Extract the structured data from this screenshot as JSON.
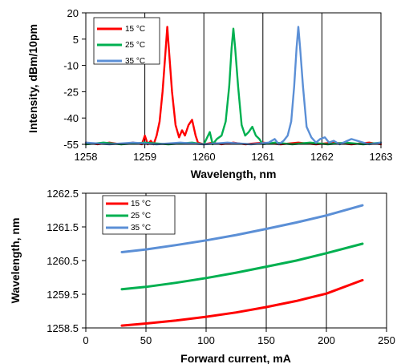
{
  "chart_data": [
    {
      "type": "line",
      "title": "",
      "xlabel": "Wavelength, nm",
      "ylabel": "Intensity, dBm/10pm",
      "xlim": [
        1258,
        1263
      ],
      "ylim": [
        -55,
        20
      ],
      "xticks": [
        "1258",
        "1259",
        "1260",
        "1261",
        "1262",
        "1263"
      ],
      "yticks": [
        "20",
        "5",
        "-10",
        "-25",
        "-40",
        "-55"
      ],
      "grid": "vertical",
      "legend_position": "top-left",
      "series": [
        {
          "name": "15 °C",
          "color": "#ff0000",
          "peak_x": 1259.38,
          "peak_y": 12,
          "x": [
            1258.0,
            1258.2,
            1258.4,
            1258.6,
            1258.8,
            1258.95,
            1259.0,
            1259.05,
            1259.1,
            1259.15,
            1259.2,
            1259.25,
            1259.3,
            1259.35,
            1259.38,
            1259.41,
            1259.46,
            1259.52,
            1259.58,
            1259.63,
            1259.68,
            1259.74,
            1259.8,
            1259.86,
            1259.9,
            1260.0,
            1260.15,
            1260.3,
            1260.5,
            1260.7,
            1261.0,
            1261.3,
            1261.6,
            1261.9,
            1262.2,
            1262.5,
            1262.8,
            1263.0
          ],
          "y": [
            -54,
            -55,
            -54,
            -55,
            -54,
            -55,
            -50,
            -55,
            -53,
            -55,
            -50,
            -42,
            -25,
            -2,
            12,
            -2,
            -25,
            -44,
            -51,
            -47,
            -50,
            -44,
            -41,
            -50,
            -54,
            -55,
            -54,
            -55,
            -54,
            -55,
            -54,
            -55,
            -54,
            -55,
            -54,
            -55,
            -54,
            -55
          ]
        },
        {
          "name": "25 °C",
          "color": "#00b050",
          "peak_x": 1260.5,
          "peak_y": 11,
          "x": [
            1258.0,
            1258.3,
            1258.6,
            1259.0,
            1259.4,
            1259.8,
            1260.0,
            1260.1,
            1260.15,
            1260.22,
            1260.3,
            1260.37,
            1260.43,
            1260.47,
            1260.5,
            1260.53,
            1260.58,
            1260.64,
            1260.7,
            1260.76,
            1260.82,
            1260.88,
            1260.94,
            1261.0,
            1261.2,
            1261.5,
            1261.8,
            1262.1,
            1262.4,
            1262.7,
            1263.0
          ],
          "y": [
            -55,
            -54,
            -55,
            -54,
            -55,
            -54,
            -55,
            -48,
            -55,
            -52,
            -50,
            -42,
            -22,
            0,
            11,
            0,
            -22,
            -44,
            -50,
            -48,
            -45,
            -50,
            -52,
            -55,
            -54,
            -55,
            -54,
            -55,
            -54,
            -55,
            -54
          ]
        },
        {
          "name": "35 °C",
          "color": "#5b8fd6",
          "peak_x": 1261.6,
          "peak_y": 12,
          "x": [
            1258.0,
            1258.4,
            1258.8,
            1259.2,
            1259.6,
            1260.0,
            1260.4,
            1260.8,
            1261.1,
            1261.2,
            1261.27,
            1261.35,
            1261.42,
            1261.48,
            1261.53,
            1261.57,
            1261.6,
            1261.63,
            1261.68,
            1261.74,
            1261.82,
            1261.9,
            1261.97,
            1262.05,
            1262.12,
            1262.2,
            1262.3,
            1262.5,
            1262.8,
            1263.0
          ],
          "y": [
            -54,
            -55,
            -54,
            -55,
            -54,
            -55,
            -54,
            -55,
            -54,
            -52,
            -55,
            -53,
            -50,
            -42,
            -22,
            0,
            12,
            0,
            -22,
            -45,
            -51,
            -54,
            -52,
            -51,
            -54,
            -53,
            -55,
            -52,
            -55,
            -54
          ]
        }
      ]
    },
    {
      "type": "line",
      "title": "",
      "xlabel": "Forward current, mA",
      "ylabel": "Wavelength, nm",
      "xlim": [
        0,
        250
      ],
      "ylim": [
        1258.5,
        1262.5
      ],
      "xticks": [
        "0",
        "50",
        "100",
        "150",
        "200",
        "250"
      ],
      "yticks": [
        "1262.5",
        "1261.5",
        "1260.5",
        "1259.5",
        "1258.5"
      ],
      "grid": "vertical",
      "legend_position": "top-left",
      "series": [
        {
          "name": "15 °C",
          "color": "#ff0000",
          "x": [
            30,
            50,
            75,
            100,
            125,
            150,
            175,
            200,
            230
          ],
          "y": [
            1258.57,
            1258.63,
            1258.72,
            1258.83,
            1258.96,
            1259.12,
            1259.3,
            1259.52,
            1259.92
          ]
        },
        {
          "name": "25 °C",
          "color": "#00b050",
          "x": [
            30,
            50,
            75,
            100,
            125,
            150,
            175,
            200,
            230
          ],
          "y": [
            1259.65,
            1259.72,
            1259.84,
            1259.98,
            1260.14,
            1260.32,
            1260.5,
            1260.72,
            1261.0
          ]
        },
        {
          "name": "35 °C",
          "color": "#5b8fd6",
          "x": [
            30,
            50,
            75,
            100,
            125,
            150,
            175,
            200,
            230
          ],
          "y": [
            1260.75,
            1260.83,
            1260.96,
            1261.1,
            1261.26,
            1261.44,
            1261.63,
            1261.84,
            1262.14
          ]
        }
      ]
    }
  ]
}
